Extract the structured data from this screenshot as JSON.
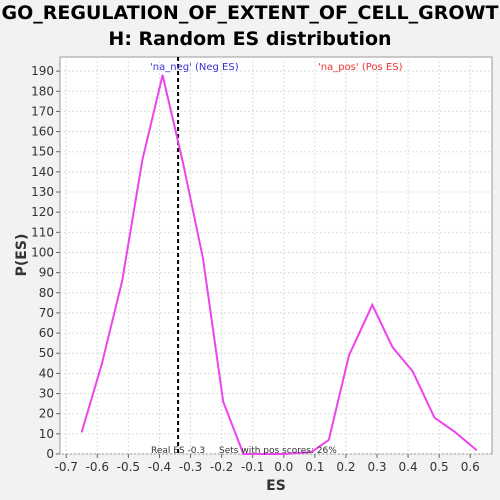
{
  "chart_data": {
    "type": "line",
    "title_line1": "GO_REGULATION_OF_EXTENT_OF_CELL_GROWT",
    "title_line2": "H: Random ES distribution",
    "xlabel": "ES",
    "ylabel": "P(ES)",
    "xlim": [
      -0.72,
      0.67
    ],
    "ylim": [
      0,
      197
    ],
    "x_ticks": [
      "-0.7",
      "-0.6",
      "-0.5",
      "-0.4",
      "-0.3",
      "-0.2",
      "-0.1",
      "0.0",
      "0.1",
      "0.2",
      "0.3",
      "0.4",
      "0.5",
      "0.6"
    ],
    "x_tick_values": [
      -0.7,
      -0.6,
      -0.5,
      -0.4,
      -0.3,
      -0.2,
      -0.1,
      0.0,
      0.1,
      0.2,
      0.3,
      0.4,
      0.5,
      0.6
    ],
    "y_ticks": [
      0,
      10,
      20,
      30,
      40,
      50,
      60,
      70,
      80,
      90,
      100,
      110,
      120,
      130,
      140,
      150,
      160,
      170,
      180,
      190
    ],
    "grid": true,
    "series": [
      {
        "color": "#ee44ee",
        "x": [
          -0.65,
          -0.585,
          -0.52,
          -0.455,
          -0.39,
          -0.325,
          -0.26,
          -0.195,
          -0.13,
          -0.065,
          0.0,
          0.09,
          0.145,
          0.21,
          0.285,
          0.35,
          0.415,
          0.485,
          0.55,
          0.62
        ],
        "y": [
          11,
          45,
          86,
          146,
          188,
          145,
          97,
          26,
          0,
          0,
          0,
          1,
          7,
          49,
          74,
          53,
          41,
          18,
          11,
          2
        ]
      }
    ],
    "real_es": -0.34,
    "legend_neg": "'na_neg' (Neg ES)",
    "legend_pos": "'na_pos' (Pos ES)",
    "legend_neg_color": "#3333cc",
    "legend_pos_color": "#ee3333",
    "annotation_real_es": "Real ES -0.3",
    "annotation_pos_scores": "Sets with pos scores: 26%"
  }
}
